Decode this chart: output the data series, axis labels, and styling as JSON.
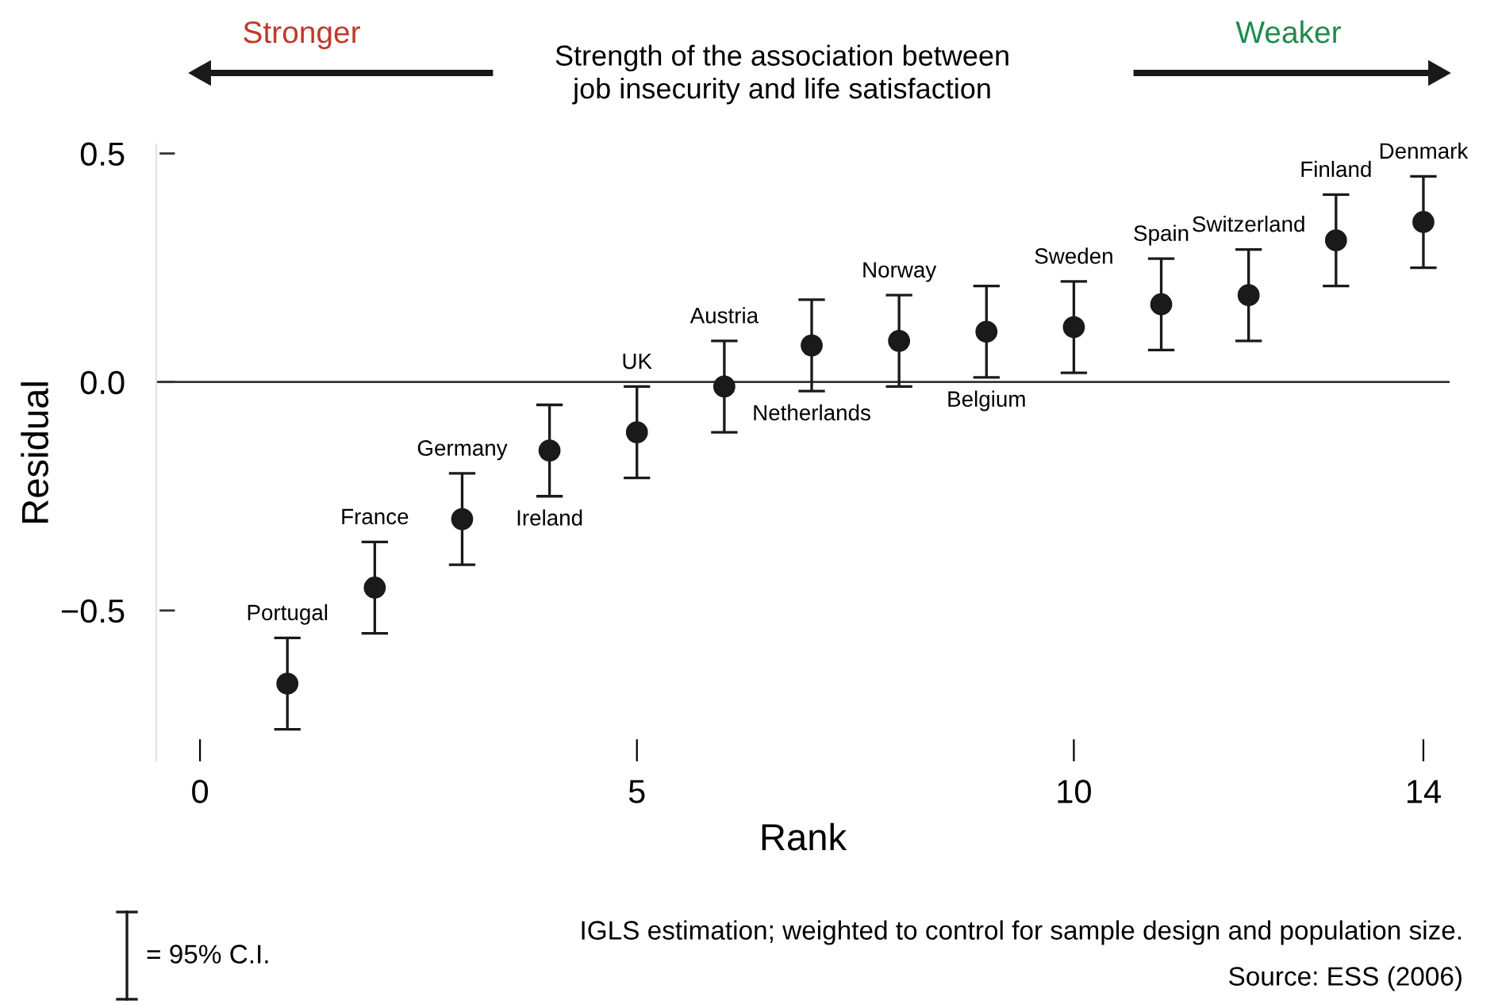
{
  "chart_data": {
    "type": "scatter",
    "xlabel": "Rank",
    "ylabel": "Residual",
    "x": [
      1,
      2,
      3,
      4,
      5,
      6,
      7,
      8,
      9,
      10,
      11,
      12,
      13,
      14
    ],
    "values": [
      -0.66,
      -0.45,
      -0.3,
      -0.15,
      -0.11,
      -0.01,
      0.08,
      0.09,
      0.11,
      0.12,
      0.17,
      0.19,
      0.31,
      0.35
    ],
    "errors": [
      0.1,
      0.1,
      0.1,
      0.1,
      0.1,
      0.1,
      0.1,
      0.1,
      0.1,
      0.1,
      0.1,
      0.1,
      0.1,
      0.1
    ],
    "color": "#1a1a1a",
    "marker": "circle",
    "xlim": [
      -0.5,
      14.3
    ],
    "xticks": [
      0,
      5,
      10,
      14
    ],
    "ylim": [
      -0.83,
      0.52
    ],
    "yticks": [
      {
        "value": -0.5,
        "label": "−0.5"
      },
      {
        "value": 0,
        "label": "0.0"
      },
      0.5
    ],
    "ref_lines": [
      {
        "axis": "y",
        "value": 0,
        "color": "#333333"
      }
    ],
    "annotations": [
      {
        "text": "Portugal",
        "x": 1,
        "y": -0.56
      },
      {
        "text": "France",
        "x": 2,
        "y": -0.35
      },
      {
        "text": "Germany",
        "x": 3,
        "y": -0.2
      },
      {
        "text": "Ireland",
        "x": 4,
        "y": -0.25
      },
      {
        "text": "UK",
        "x": 5,
        "y": -0.01
      },
      {
        "text": "Austria",
        "x": 6,
        "y": 0.09
      },
      {
        "text": "Netherlands",
        "x": 7,
        "y": -0.02
      },
      {
        "text": "Norway",
        "x": 8,
        "y": 0.19
      },
      {
        "text": "Belgium",
        "x": 9,
        "y": 0.01
      },
      {
        "text": "Sweden",
        "x": 10,
        "y": 0.22
      },
      {
        "text": "Spain",
        "x": 11,
        "y": 0.27
      },
      {
        "text": "Switzerland",
        "x": 12,
        "y": 0.29
      },
      {
        "text": "Finland",
        "x": 13,
        "y": 0.41
      },
      {
        "text": "Denmark",
        "x": 14,
        "y": 0.45
      },
      "Stronger",
      "Strength of the association between\njob insecurity and life satisfaction",
      "Weaker",
      "= 95% C.I.",
      "IGLS estimation; weighted to control for sample design and population size.",
      "Source: ESS (2006)"
    ],
    "grid": false
  }
}
